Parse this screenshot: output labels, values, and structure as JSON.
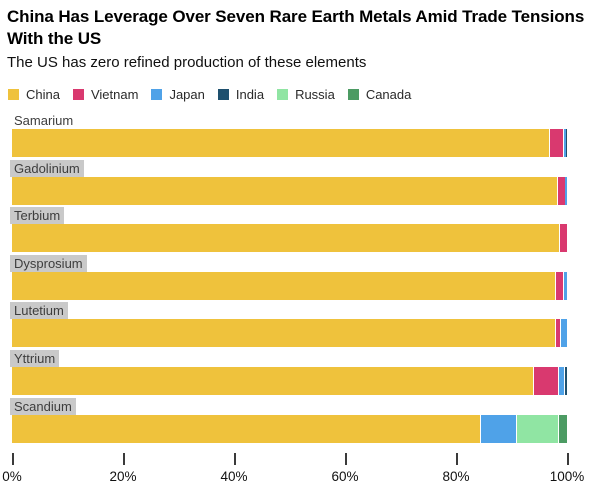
{
  "header": {
    "title": "China Has Leverage Over Seven Rare Earth Metals Amid Trade Tensions With the US",
    "subtitle": "The US has zero refined production of these elements"
  },
  "colors": {
    "China": "#EFC23C",
    "Vietnam": "#D9396F",
    "Japan": "#4FA2E8",
    "India": "#1E506E",
    "Russia": "#90E5A3",
    "Canada": "#4C9B63"
  },
  "legend": [
    "China",
    "Vietnam",
    "Japan",
    "India",
    "Russia",
    "Canada"
  ],
  "chart_data": {
    "type": "bar",
    "orientation": "horizontal",
    "stacked": true,
    "unit": "percent share of refined production",
    "xlim": [
      0,
      100
    ],
    "x_ticks": [
      "0%",
      "20%",
      "40%",
      "60%",
      "80%",
      "100%"
    ],
    "grid": false,
    "legend_position": "top",
    "categories": [
      "Samarium",
      "Gadolinium",
      "Terbium",
      "Dysprosium",
      "Lutetium",
      "Yttrium",
      "Scandium"
    ],
    "rows": [
      {
        "label": "Samarium",
        "highlighted": false,
        "segments": [
          {
            "name": "China",
            "value": 96.8
          },
          {
            "name": "Vietnam",
            "value": 2.5
          },
          {
            "name": "Japan",
            "value": 0.5
          },
          {
            "name": "India",
            "value": 0.2
          }
        ]
      },
      {
        "label": "Gadolinium",
        "highlighted": true,
        "segments": [
          {
            "name": "China",
            "value": 98.2
          },
          {
            "name": "Vietnam",
            "value": 1.5
          },
          {
            "name": "Japan",
            "value": 0.3
          }
        ]
      },
      {
        "label": "Terbium",
        "highlighted": true,
        "segments": [
          {
            "name": "China",
            "value": 98.6
          },
          {
            "name": "Vietnam",
            "value": 1.4
          }
        ]
      },
      {
        "label": "Dysprosium",
        "highlighted": true,
        "segments": [
          {
            "name": "China",
            "value": 97.8
          },
          {
            "name": "Vietnam",
            "value": 1.4
          },
          {
            "name": "Japan",
            "value": 0.8
          }
        ]
      },
      {
        "label": "Lutetium",
        "highlighted": true,
        "segments": [
          {
            "name": "China",
            "value": 97.8
          },
          {
            "name": "Vietnam",
            "value": 1.0
          },
          {
            "name": "Japan",
            "value": 1.2
          }
        ]
      },
      {
        "label": "Yttrium",
        "highlighted": true,
        "segments": [
          {
            "name": "China",
            "value": 93.9
          },
          {
            "name": "Vietnam",
            "value": 4.4
          },
          {
            "name": "Japan",
            "value": 1.1
          },
          {
            "name": "India",
            "value": 0.6
          }
        ]
      },
      {
        "label": "Scandium",
        "highlighted": true,
        "segments": [
          {
            "name": "China",
            "value": 84.3
          },
          {
            "name": "Japan",
            "value": 6.5
          },
          {
            "name": "Russia",
            "value": 7.6
          },
          {
            "name": "Canada",
            "value": 1.6
          }
        ]
      }
    ]
  }
}
